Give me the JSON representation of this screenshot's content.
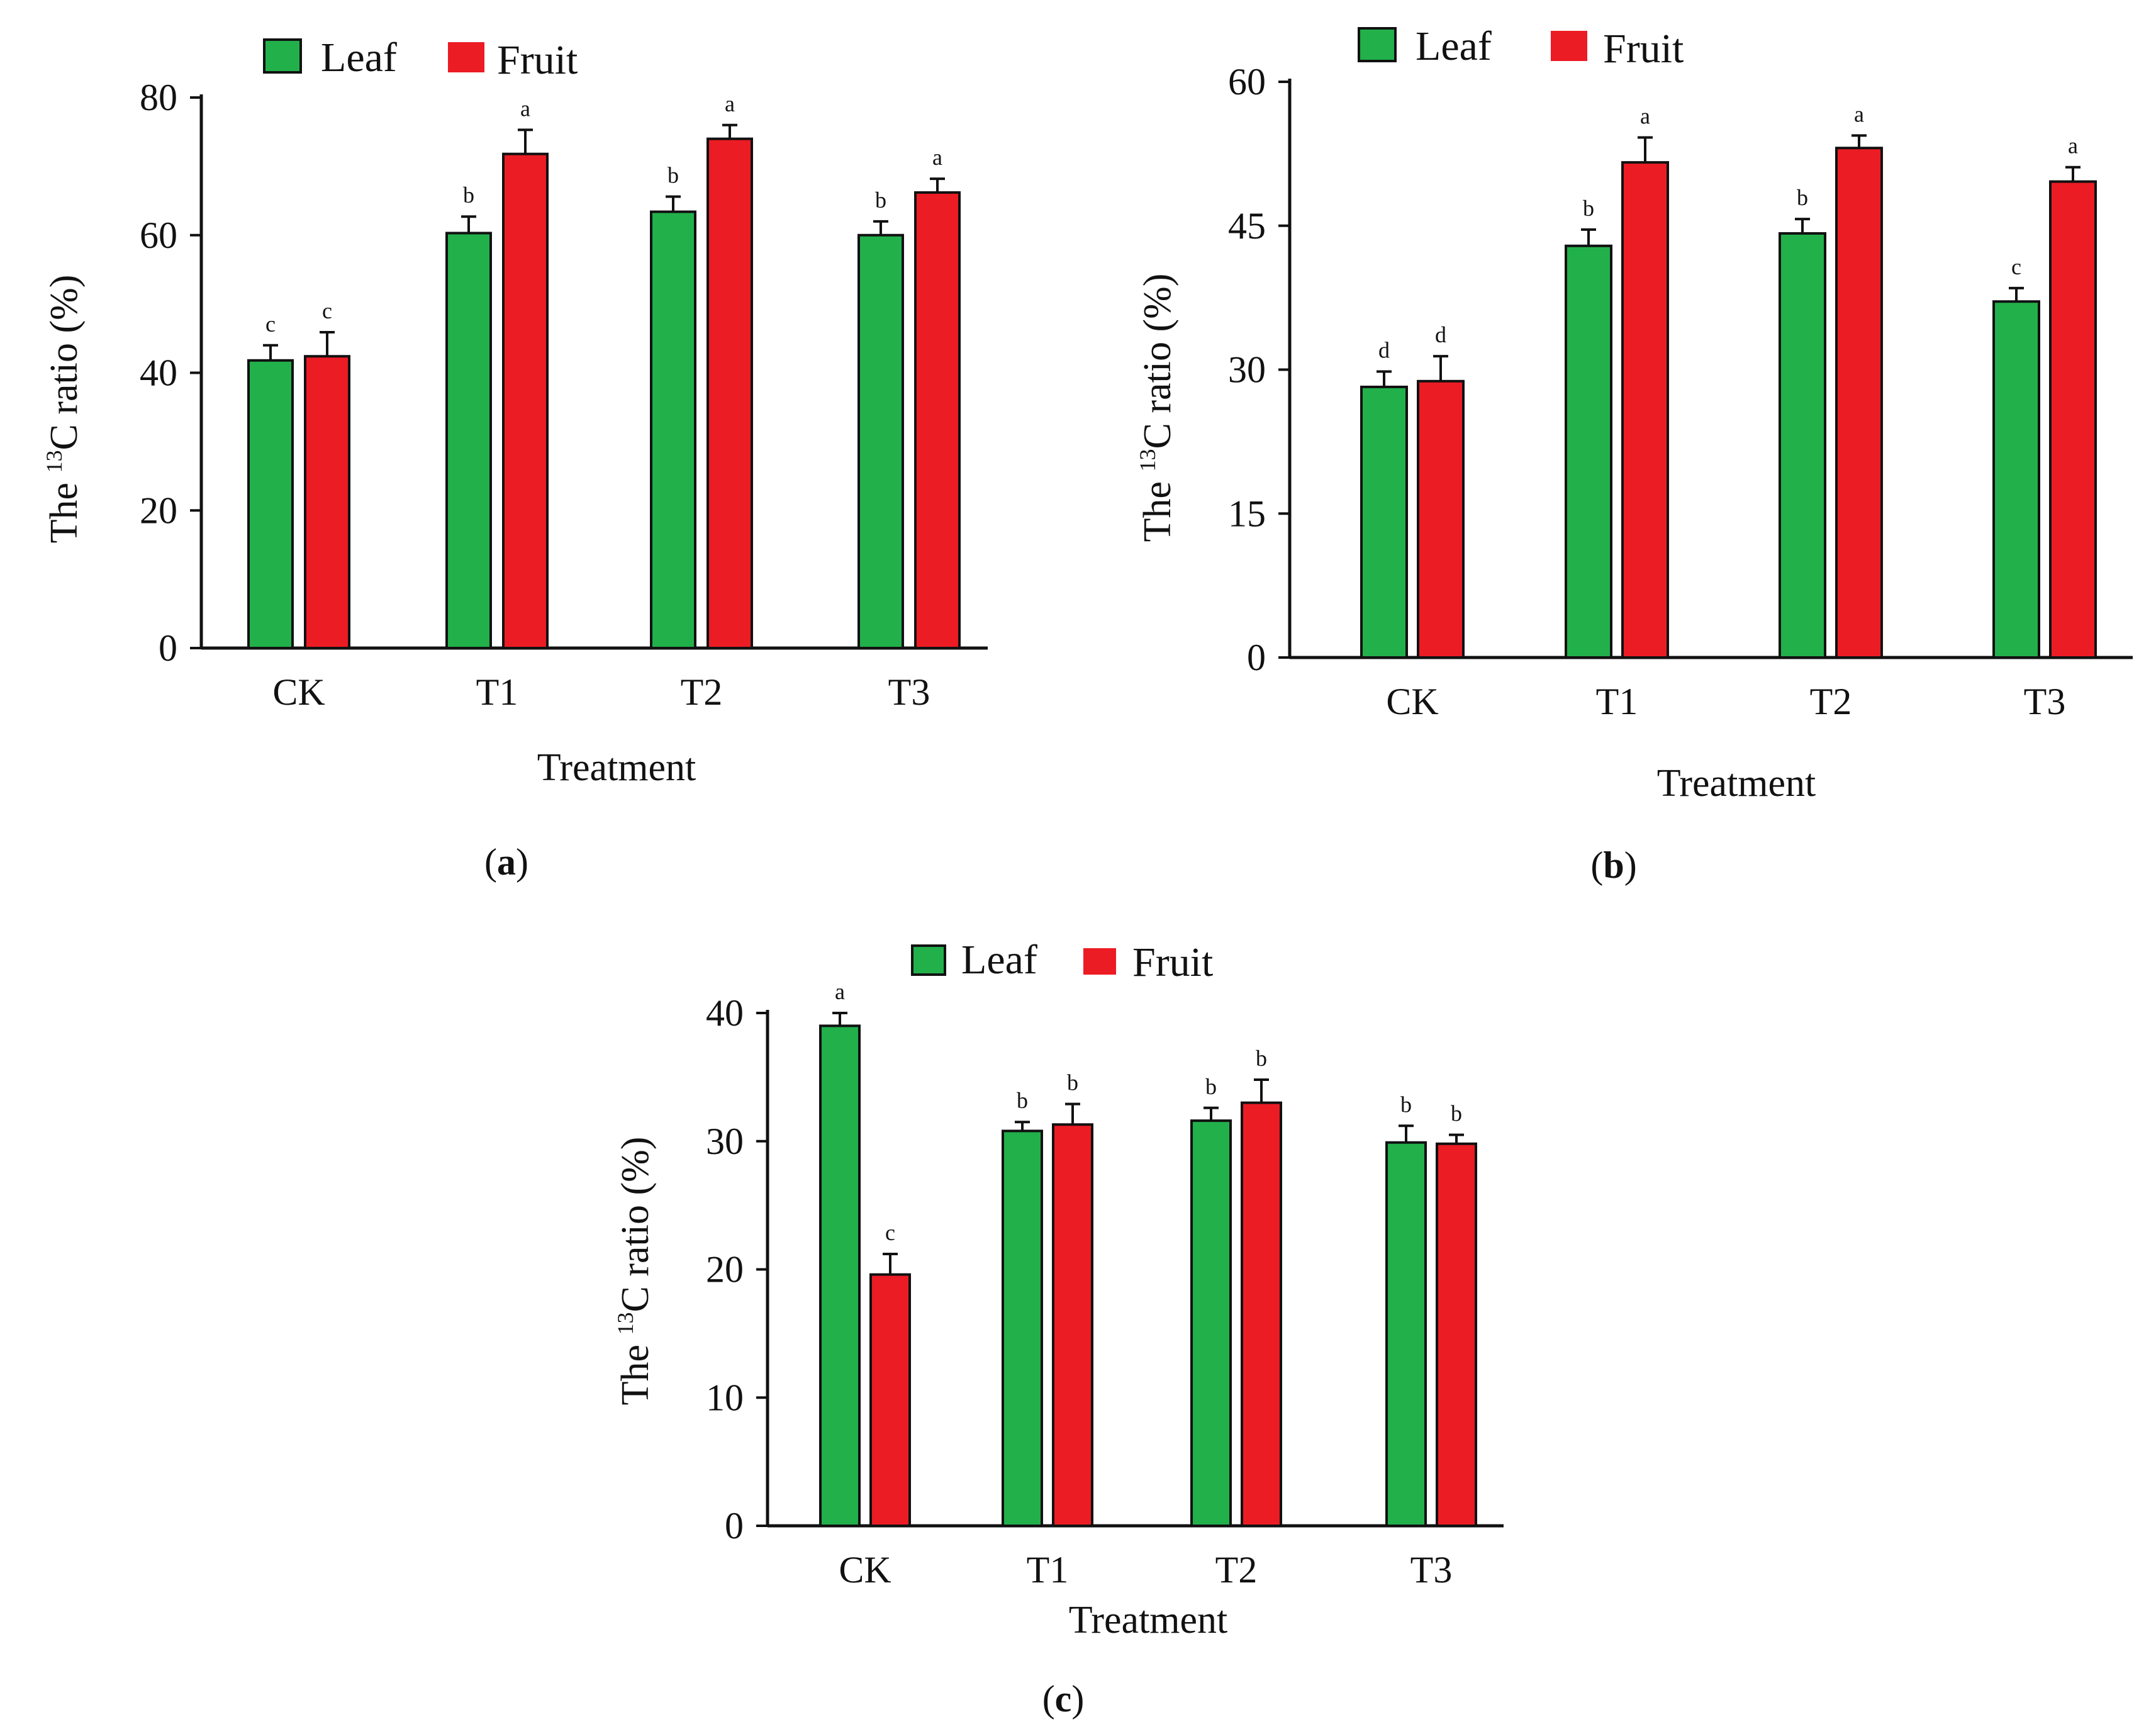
{
  "figure": {
    "colors": {
      "leaf": "#22b04b",
      "fruit": "#ec1c24",
      "axis": "#111111"
    }
  },
  "chart_data": [
    {
      "type": "bar",
      "panel_label": "a",
      "categories": [
        "CK",
        "T1",
        "T2",
        "T3"
      ],
      "series": [
        {
          "name": "Leaf",
          "values": [
            41.8,
            60.3,
            63.4,
            60.0
          ],
          "errors": [
            2.2,
            2.4,
            2.2,
            2.0
          ],
          "letters": [
            "c",
            "b",
            "b",
            "b"
          ]
        },
        {
          "name": "Fruit",
          "values": [
            42.4,
            71.8,
            74.0,
            66.2
          ],
          "errors": [
            3.5,
            3.5,
            2.0,
            2.0
          ],
          "letters": [
            "c",
            "a",
            "a",
            "a"
          ]
        }
      ],
      "ylabel_prefix": "The ",
      "ylabel_sup": "13",
      "ylabel_suffix": "C ratio (%)",
      "xlabel": "Treatment",
      "ylim": [
        0,
        80
      ],
      "yticks": [
        0,
        20,
        40,
        60,
        80
      ],
      "legend": "top-left"
    },
    {
      "type": "bar",
      "panel_label": "b",
      "categories": [
        "CK",
        "T1",
        "T2",
        "T3"
      ],
      "series": [
        {
          "name": "Leaf",
          "values": [
            28.2,
            42.9,
            44.2,
            37.1
          ],
          "errors": [
            1.6,
            1.7,
            1.5,
            1.4
          ],
          "letters": [
            "d",
            "b",
            "b",
            "c"
          ]
        },
        {
          "name": "Fruit",
          "values": [
            28.8,
            51.6,
            53.1,
            49.6
          ],
          "errors": [
            2.6,
            2.6,
            1.3,
            1.5
          ],
          "letters": [
            "d",
            "a",
            "a",
            "a"
          ]
        }
      ],
      "ylabel_prefix": "The ",
      "ylabel_sup": "13",
      "ylabel_suffix": "C ratio (%)",
      "xlabel": "Treatment",
      "ylim": [
        0,
        60
      ],
      "yticks": [
        0,
        15,
        30,
        45,
        60
      ],
      "legend": "top-left"
    },
    {
      "type": "bar",
      "panel_label": "c",
      "categories": [
        "CK",
        "T1",
        "T2",
        "T3"
      ],
      "series": [
        {
          "name": "Leaf",
          "values": [
            39.0,
            30.8,
            31.6,
            29.9
          ],
          "errors": [
            1.0,
            0.7,
            1.0,
            1.3
          ],
          "letters": [
            "a",
            "b",
            "b",
            "b"
          ]
        },
        {
          "name": "Fruit",
          "values": [
            19.6,
            31.3,
            33.0,
            29.8
          ],
          "errors": [
            1.6,
            1.6,
            1.8,
            0.7
          ],
          "letters": [
            "c",
            "b",
            "b",
            "b"
          ]
        }
      ],
      "ylabel_prefix": "The ",
      "ylabel_sup": "13",
      "ylabel_suffix": "C ratio (%)",
      "xlabel": "Treatment",
      "ylim": [
        0,
        40
      ],
      "yticks": [
        0,
        10,
        20,
        30,
        40
      ],
      "legend": "top-left"
    }
  ]
}
